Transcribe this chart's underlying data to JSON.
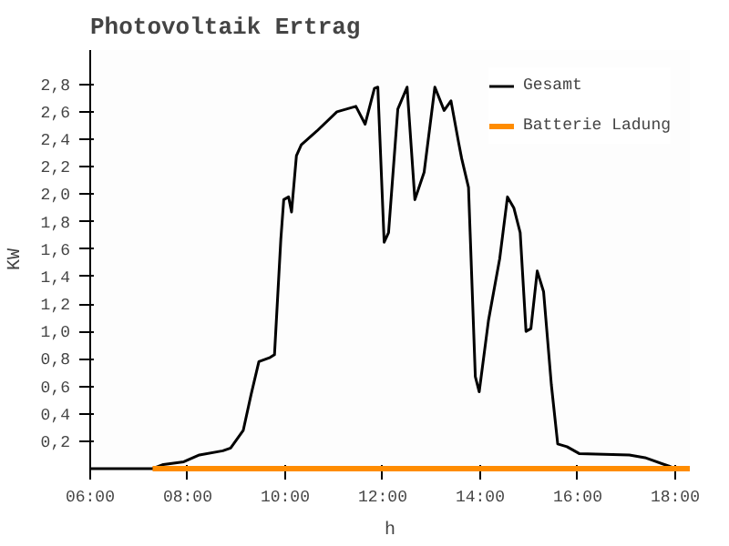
{
  "chart_data": {
    "type": "line",
    "title": "Photovoltaik Ertrag",
    "xlabel": "h",
    "ylabel": "KW",
    "xlim": [
      6,
      18.3
    ],
    "ylim": [
      0,
      3.05
    ],
    "xticks": [
      {
        "value": 6,
        "label": "06:00"
      },
      {
        "value": 8,
        "label": "08:00"
      },
      {
        "value": 10,
        "label": "10:00"
      },
      {
        "value": 12,
        "label": "12:00"
      },
      {
        "value": 14,
        "label": "14:00"
      },
      {
        "value": 16,
        "label": "16:00"
      },
      {
        "value": 18,
        "label": "18:00"
      }
    ],
    "yticks": [
      {
        "value": 0.2,
        "label": "0,2"
      },
      {
        "value": 0.4,
        "label": "0,4"
      },
      {
        "value": 0.6,
        "label": "0,6"
      },
      {
        "value": 0.8,
        "label": "0,8"
      },
      {
        "value": 1.0,
        "label": "1,0"
      },
      {
        "value": 1.2,
        "label": "1,2"
      },
      {
        "value": 1.4,
        "label": "1,4"
      },
      {
        "value": 1.6,
        "label": "1,6"
      },
      {
        "value": 1.8,
        "label": "1,8"
      },
      {
        "value": 2.0,
        "label": "2,0"
      },
      {
        "value": 2.2,
        "label": "2,2"
      },
      {
        "value": 2.4,
        "label": "2,4"
      },
      {
        "value": 2.6,
        "label": "2,6"
      },
      {
        "value": 2.8,
        "label": "2,8"
      }
    ],
    "grid": false,
    "legend": "top right",
    "marker": "none",
    "line_style": "solid",
    "series": [
      {
        "name": "Gesamt",
        "color": "#000000",
        "x": [
          6,
          7.28,
          7.5,
          7.92,
          8.24,
          8.72,
          8.88,
          9.14,
          9.3,
          9.46,
          9.69,
          9.78,
          9.91,
          9.97,
          10.07,
          10.13,
          10.23,
          10.33,
          10.65,
          11.06,
          11.45,
          11.64,
          11.83,
          11.9,
          12.03,
          12.12,
          12.31,
          12.5,
          12.66,
          12.85,
          13.07,
          13.26,
          13.4,
          13.56,
          13.62,
          13.76,
          13.9,
          13.98,
          14.17,
          14.4,
          14.56,
          14.69,
          14.82,
          14.94,
          15.04,
          15.17,
          15.3,
          15.46,
          15.59,
          15.78,
          16.03,
          17.06,
          17.38,
          17.86,
          18.0
        ],
        "values": [
          0,
          0,
          0.03,
          0.05,
          0.1,
          0.13,
          0.15,
          0.28,
          0.54,
          0.78,
          0.81,
          0.83,
          1.67,
          1.96,
          1.98,
          1.87,
          2.28,
          2.36,
          2.46,
          2.6,
          2.64,
          2.51,
          2.77,
          2.78,
          1.65,
          1.72,
          2.62,
          2.78,
          1.96,
          2.16,
          2.78,
          2.61,
          2.68,
          2.37,
          2.26,
          2.05,
          0.67,
          0.56,
          1.08,
          1.53,
          1.98,
          1.9,
          1.72,
          1.0,
          1.02,
          1.44,
          1.29,
          0.61,
          0.18,
          0.16,
          0.11,
          0.1,
          0.08,
          0.02,
          0
        ]
      },
      {
        "name": "Batterie Ladung",
        "color": "#ff8c00",
        "x": [
          7.28,
          18.3
        ],
        "values": [
          0,
          0
        ]
      }
    ]
  }
}
